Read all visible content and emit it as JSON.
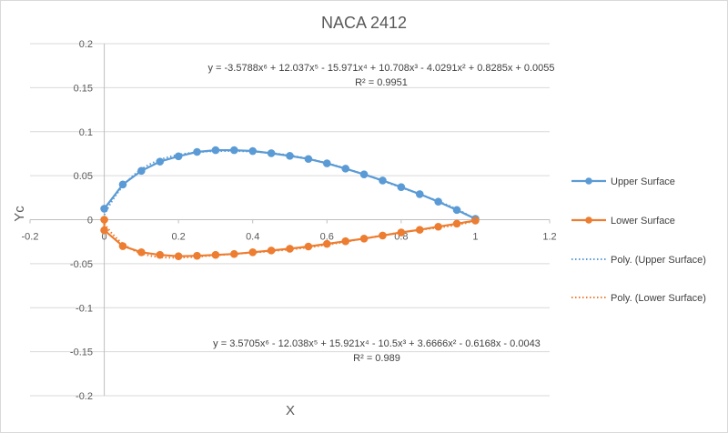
{
  "chart_data": {
    "type": "scatter",
    "title": "NACA 2412",
    "xlabel": "X",
    "ylabel": "Yc",
    "xlim": [
      -0.2,
      1.2
    ],
    "ylim": [
      -0.2,
      0.2
    ],
    "x_ticks": [
      "-0.2",
      "0",
      "0.2",
      "0.4",
      "0.6",
      "0.8",
      "1",
      "1.2"
    ],
    "y_ticks": [
      "0.2",
      "0.15",
      "0.1",
      "0.05",
      "0",
      "-0.05",
      "-0.1",
      "-0.15",
      "-0.2"
    ],
    "grid": "horizontal",
    "legend_position": "right",
    "series": [
      {
        "name": "Upper Surface",
        "color": "#5b9bd5",
        "style": "line-markers",
        "x": [
          0,
          0.05,
          0.1,
          0.15,
          0.2,
          0.25,
          0.3,
          0.35,
          0.4,
          0.45,
          0.5,
          0.55,
          0.6,
          0.65,
          0.7,
          0.75,
          0.8,
          0.85,
          0.9,
          0.95,
          1.0
        ],
        "y": [
          0.0125,
          0.04,
          0.0555,
          0.066,
          0.072,
          0.077,
          0.079,
          0.079,
          0.078,
          0.0755,
          0.0725,
          0.069,
          0.064,
          0.058,
          0.0515,
          0.0445,
          0.037,
          0.029,
          0.0205,
          0.011,
          0.001
        ]
      },
      {
        "name": "Lower Surface",
        "color": "#ed7d31",
        "style": "line-markers",
        "x": [
          0,
          0,
          0.05,
          0.1,
          0.15,
          0.2,
          0.25,
          0.3,
          0.35,
          0.4,
          0.45,
          0.5,
          0.55,
          0.6,
          0.65,
          0.7,
          0.75,
          0.8,
          0.85,
          0.9,
          0.95,
          1.0
        ],
        "y": [
          0,
          -0.012,
          -0.03,
          -0.037,
          -0.04,
          -0.0415,
          -0.041,
          -0.04,
          -0.039,
          -0.037,
          -0.035,
          -0.033,
          -0.0305,
          -0.0275,
          -0.0245,
          -0.0215,
          -0.018,
          -0.0145,
          -0.0115,
          -0.008,
          -0.0045,
          -0.001
        ]
      },
      {
        "name": "Poly. (Upper Surface)",
        "color": "#5b9bd5",
        "style": "dotted",
        "fit_of": "Upper Surface",
        "coefficients": [
          0.0055,
          0.8285,
          -4.0291,
          10.708,
          -15.971,
          12.037,
          -3.5788
        ]
      },
      {
        "name": "Poly. (Lower Surface)",
        "color": "#ed7d31",
        "style": "dotted",
        "fit_of": "Lower Surface",
        "coefficients": [
          -0.0043,
          -0.6168,
          3.6666,
          -10.5,
          15.921,
          -12.038,
          3.5705
        ]
      }
    ],
    "annotations": {
      "upper_eq": "y = -3.5788x⁶ + 12.037x⁵ - 15.971x⁴ + 10.708x³ - 4.0291x² + 0.8285x + 0.0055",
      "upper_r2": "R² = 0.9951",
      "lower_eq": "y = 3.5705x⁶ - 12.038x⁵ + 15.921x⁴ - 10.5x³ + 3.6666x² - 0.6168x - 0.0043",
      "lower_r2": "R² = 0.989"
    }
  }
}
